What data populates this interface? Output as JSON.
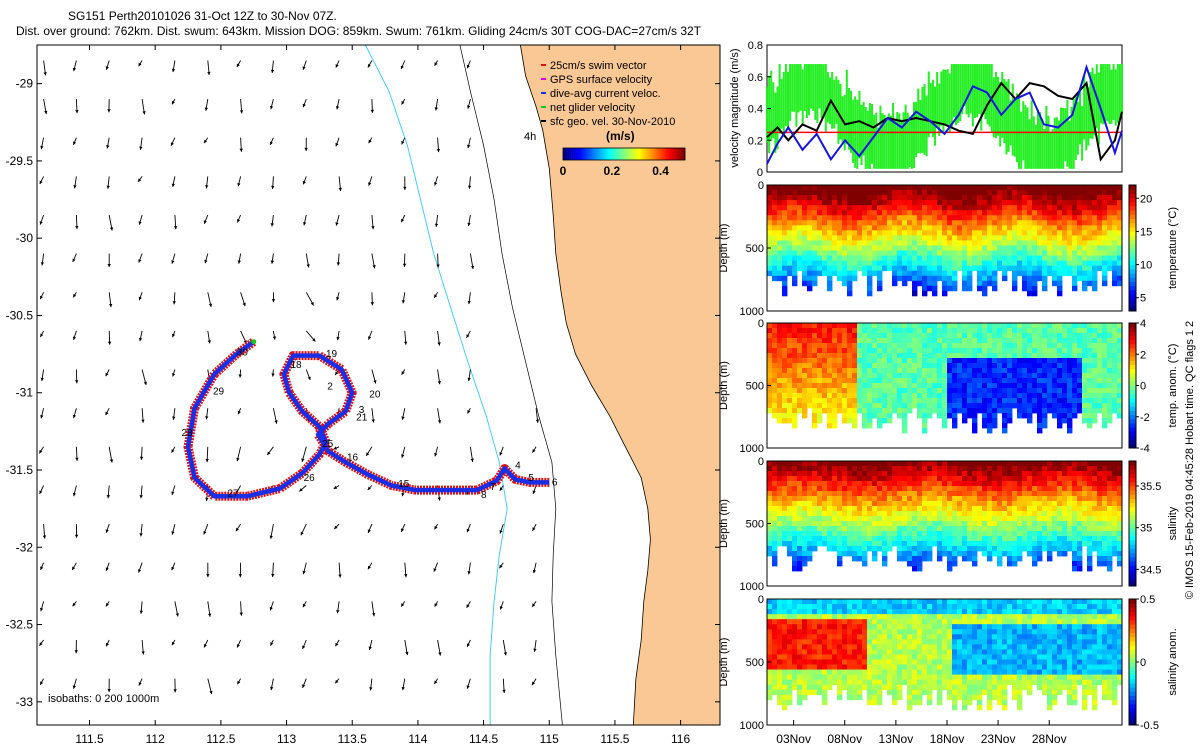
{
  "header": {
    "line1": "SG151 Perth20101026 31-Oct 12Z to 30-Nov 07Z.",
    "line2": "Dist. over ground: 762km. Dist. swum: 643km. Mission DOG: 859km. Swum: 761km. Gliding 24cm/s 30T COG-DAC=27cm/s 32T"
  },
  "side_note": "© IMOS 15-Feb-2019 04:45:28 Hobart time. QC flags 1  2",
  "colors": {
    "land": "#f9c894",
    "coast": "#000000",
    "isobath": "#33c8ff",
    "track_red": "#e01010",
    "track_blue": "#1a2ee6",
    "net_green": "#18c818",
    "threshold_red": "#ff0000",
    "series_black": "#000000",
    "series_blue": "#1515e0",
    "series_green": "#22ee22"
  },
  "map": {
    "xlim": [
      111.1,
      116.3
    ],
    "ylim": [
      -33.15,
      -28.75
    ],
    "xticks": [
      111.5,
      112,
      112.5,
      113,
      113.5,
      114,
      114.5,
      115,
      115.5,
      116
    ],
    "yticks": [
      -29,
      -29.5,
      -30,
      -30.5,
      -31,
      -31.5,
      -32,
      -32.5,
      -33
    ],
    "legend": [
      {
        "label": "25cm/s swim vector",
        "color": "#e01010"
      },
      {
        "label": "GPS surface velocity",
        "color": "#e000e0"
      },
      {
        "label": "dive-avg current veloc.",
        "color": "#1a2ee6"
      },
      {
        "label": "net glider velocity",
        "color": "#18c818"
      },
      {
        "label": "sfc geo. vel. 30-Nov-2010",
        "color": "#000000"
      }
    ],
    "time_label": "4h",
    "colorbar": {
      "title": "(m/s)",
      "ticks": [
        "0",
        "0.2",
        "0.4"
      ],
      "range": [
        0,
        0.5
      ]
    },
    "isobaths_label": "isobaths: 0   200  1000m",
    "day_labels": [
      {
        "t": "2",
        "lon": 113.31,
        "lat": -30.98
      },
      {
        "t": "3",
        "lon": 113.55,
        "lat": -31.13
      },
      {
        "t": "4",
        "lon": 114.74,
        "lat": -31.49
      },
      {
        "t": "5",
        "lon": 114.84,
        "lat": -31.57
      },
      {
        "t": "6",
        "lon": 115.02,
        "lat": -31.6
      },
      {
        "t": "7",
        "lon": 114.55,
        "lat": -31.63
      },
      {
        "t": "8",
        "lon": 114.48,
        "lat": -31.68
      },
      {
        "t": "15",
        "lon": 113.85,
        "lat": -31.61
      },
      {
        "t": "16",
        "lon": 113.46,
        "lat": -31.44
      },
      {
        "t": "18",
        "lon": 113.03,
        "lat": -30.84
      },
      {
        "t": "19",
        "lon": 113.3,
        "lat": -30.77
      },
      {
        "t": "20",
        "lon": 113.63,
        "lat": -31.03
      },
      {
        "t": "21",
        "lon": 113.53,
        "lat": -31.18
      },
      {
        "t": "25",
        "lon": 113.27,
        "lat": -31.35
      },
      {
        "t": "26",
        "lon": 113.13,
        "lat": -31.57
      },
      {
        "t": "27",
        "lon": 112.55,
        "lat": -31.67
      },
      {
        "t": "28",
        "lon": 112.2,
        "lat": -31.28
      },
      {
        "t": "29",
        "lon": 112.44,
        "lat": -31.01
      },
      {
        "t": "30",
        "lon": 112.62,
        "lat": -30.76
      }
    ]
  },
  "chart_data": [
    {
      "type": "line",
      "ylabel": "velocity magnitude (m/s)",
      "ylim": [
        0,
        0.8
      ],
      "yticks": [
        0,
        0.2,
        0.4,
        0.6,
        0.8
      ],
      "threshold": {
        "value": 0.25,
        "color": "#ff0000"
      },
      "series": [
        {
          "color": "#000000",
          "x": [
            0,
            0.03,
            0.06,
            0.1,
            0.14,
            0.18,
            0.22,
            0.26,
            0.3,
            0.34,
            0.38,
            0.42,
            0.46,
            0.5,
            0.54,
            0.58,
            0.62,
            0.66,
            0.7,
            0.74,
            0.78,
            0.82,
            0.86,
            0.9,
            0.94,
            0.98,
            1.0
          ],
          "values": [
            0.22,
            0.28,
            0.2,
            0.3,
            0.26,
            0.45,
            0.3,
            0.32,
            0.28,
            0.34,
            0.32,
            0.34,
            0.32,
            0.3,
            0.26,
            0.24,
            0.42,
            0.56,
            0.46,
            0.56,
            0.54,
            0.48,
            0.46,
            0.56,
            0.08,
            0.2,
            0.38
          ]
        },
        {
          "color": "#1515e0",
          "x": [
            0,
            0.03,
            0.06,
            0.1,
            0.14,
            0.18,
            0.22,
            0.26,
            0.3,
            0.34,
            0.38,
            0.42,
            0.46,
            0.5,
            0.54,
            0.58,
            0.62,
            0.66,
            0.7,
            0.74,
            0.78,
            0.82,
            0.86,
            0.9,
            0.94,
            0.98,
            1.0
          ],
          "values": [
            0.05,
            0.18,
            0.28,
            0.14,
            0.24,
            0.08,
            0.2,
            0.1,
            0.22,
            0.34,
            0.28,
            0.38,
            0.32,
            0.24,
            0.36,
            0.54,
            0.5,
            0.36,
            0.46,
            0.5,
            0.3,
            0.28,
            0.36,
            0.66,
            0.4,
            0.12,
            0.26
          ]
        }
      ]
    },
    {
      "type": "heatmap",
      "ylabel": "Depth (m)",
      "yticks": [
        0,
        500,
        1000
      ],
      "colorbar_label": "temperature (°C)",
      "colorbar_ticks": [
        5,
        10,
        15,
        20
      ],
      "crange": [
        3,
        22
      ],
      "palette": "jet"
    },
    {
      "type": "heatmap",
      "ylabel": "Depth (m)",
      "yticks": [
        0,
        500,
        1000
      ],
      "colorbar_label": "temp. anom. (°C)",
      "colorbar_ticks": [
        -4,
        -2,
        0,
        2,
        4
      ],
      "crange": [
        -4,
        4
      ],
      "palette": "jet"
    },
    {
      "type": "heatmap",
      "ylabel": "Depth (m)",
      "yticks": [
        0,
        500,
        1000
      ],
      "colorbar_label": "salinity",
      "colorbar_ticks": [
        34.5,
        35,
        35.5
      ],
      "crange": [
        34.3,
        35.8
      ],
      "palette": "jet"
    },
    {
      "type": "heatmap",
      "ylabel": "Depth (m)",
      "yticks": [
        0,
        500,
        1000
      ],
      "xticks": [
        "03Nov",
        "08Nov",
        "13Nov",
        "18Nov",
        "23Nov",
        "28Nov"
      ],
      "colorbar_label": "salinity anom.",
      "colorbar_ticks": [
        -0.5,
        0,
        0.5
      ],
      "crange": [
        -0.5,
        0.5
      ],
      "palette": "jet"
    }
  ]
}
